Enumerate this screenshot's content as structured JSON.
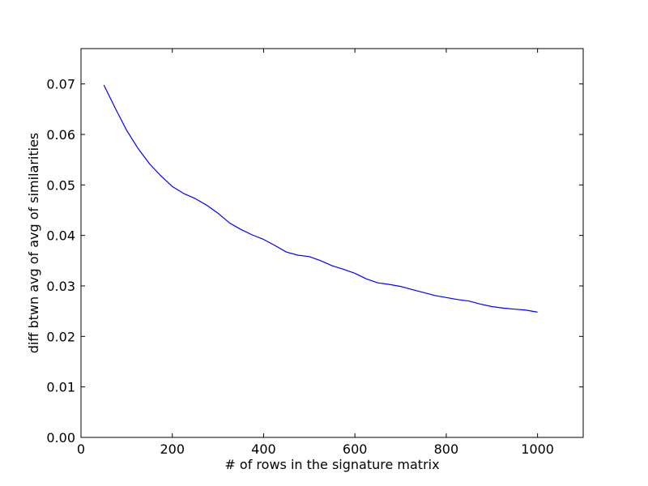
{
  "chart_data": {
    "type": "line",
    "title": "",
    "xlabel": "# of rows in the signature matrix",
    "ylabel": "diff btwn avg of avg of similarities",
    "xlim": [
      0,
      1100
    ],
    "ylim": [
      0.0,
      0.077
    ],
    "xticks": [
      0,
      200,
      400,
      600,
      800,
      1000
    ],
    "xtick_labels": [
      "0",
      "200",
      "400",
      "600",
      "800",
      "1000"
    ],
    "yticks": [
      0.0,
      0.01,
      0.02,
      0.03,
      0.04,
      0.05,
      0.06,
      0.07
    ],
    "ytick_labels": [
      "0.00",
      "0.01",
      "0.02",
      "0.03",
      "0.04",
      "0.05",
      "0.06",
      "0.07"
    ],
    "grid": false,
    "line_color": "#0000ff",
    "series": [
      {
        "x": [
          50,
          75,
          100,
          125,
          150,
          175,
          200,
          225,
          250,
          275,
          300,
          325,
          350,
          375,
          400,
          425,
          450,
          475,
          500,
          525,
          550,
          575,
          600,
          625,
          650,
          675,
          700,
          725,
          750,
          775,
          800,
          825,
          850,
          875,
          900,
          925,
          950,
          975,
          1000
        ],
        "y": [
          0.0698,
          0.0652,
          0.0608,
          0.0572,
          0.0542,
          0.0518,
          0.0497,
          0.0483,
          0.0473,
          0.046,
          0.0444,
          0.0425,
          0.0412,
          0.0401,
          0.0392,
          0.038,
          0.0367,
          0.0361,
          0.0358,
          0.035,
          0.034,
          0.0333,
          0.0325,
          0.0314,
          0.0306,
          0.0303,
          0.0299,
          0.0293,
          0.0287,
          0.0281,
          0.0277,
          0.0273,
          0.027,
          0.0264,
          0.0259,
          0.0256,
          0.0254,
          0.0252,
          0.0248
        ]
      }
    ]
  }
}
